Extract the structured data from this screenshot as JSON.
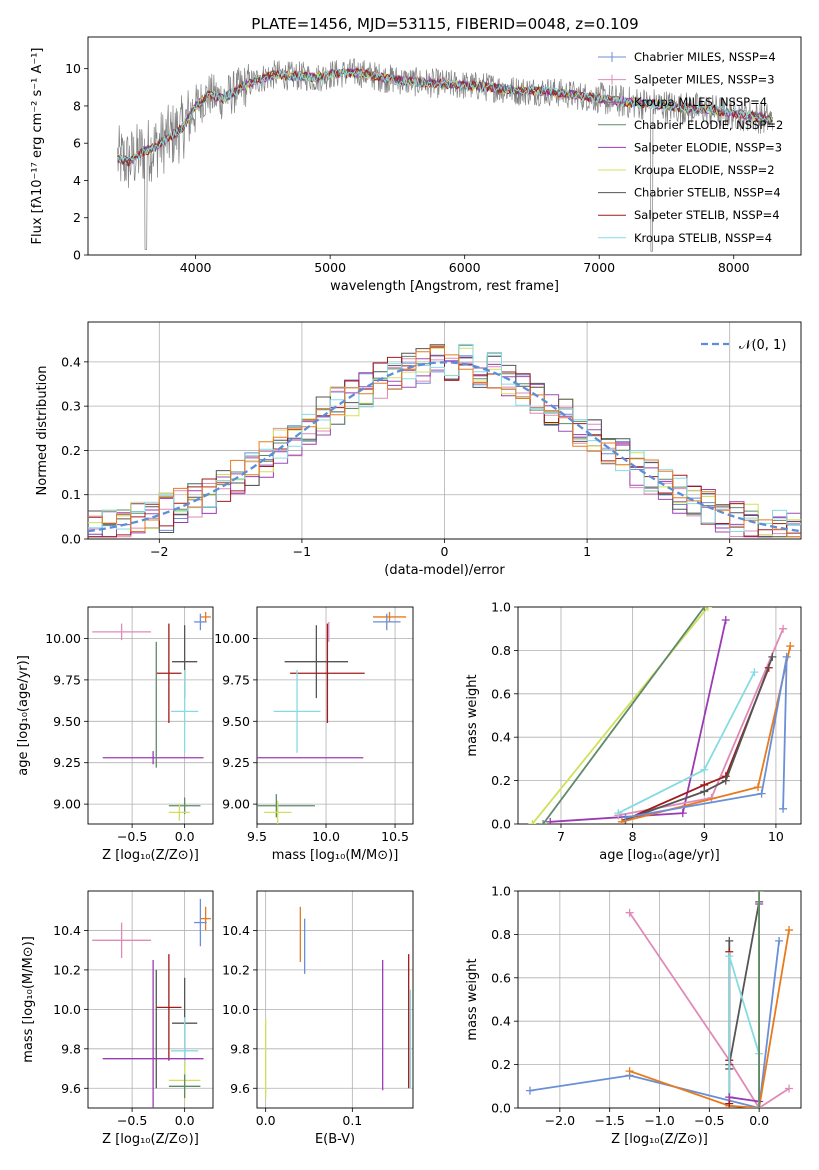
{
  "figure": {
    "title": "PLATE=1456, MJD=53115, FIBERID=0048, z=0.109"
  },
  "colors": {
    "chabrier_miles": "#6a8fd6",
    "salpeter_miles": "#e08ab7",
    "kroupa_miles": "#9a4fb2",
    "chabrier_elodie": "#5f8a6a",
    "salpeter_elodie": "#9b3bb3",
    "kroupa_elodie": "#cfe15a",
    "chabrier_stelib": "#555555",
    "salpeter_stelib": "#a01c1c",
    "kroupa_stelib": "#86dbe3",
    "orange": "#e87a1e",
    "gray_data": "#808080",
    "normal_curve": "#5b8ed8",
    "grid": "#b0b0b0"
  },
  "chart_data": [
    {
      "id": "spectrum",
      "type": "line",
      "xlabel": "wavelength [Angstrom, rest frame]",
      "ylabel": "Flux [fλ10⁻¹⁷ erg cm⁻² s⁻¹ A⁻¹]",
      "xlim": [
        3200,
        8500
      ],
      "ylim": [
        0,
        11.7
      ],
      "xticks": [
        4000,
        5000,
        6000,
        7000,
        8000
      ],
      "yticks": [
        0,
        2,
        4,
        6,
        8,
        10
      ],
      "grid": false,
      "legend_position": "right",
      "series": [
        {
          "name": "Chabrier MILES, N_SSP=4",
          "color": "#6a8fd6"
        },
        {
          "name": "Salpeter MILES, N_SSP=3",
          "color": "#e08ab7"
        },
        {
          "name": "Kroupa MILES, N_SSP=4",
          "color": "#9a4fb2"
        },
        {
          "name": "Chabrier ELODIE, N_SSP=2",
          "color": "#5f8a6a"
        },
        {
          "name": "Salpeter ELODIE, N_SSP=3",
          "color": "#9b3bb3"
        },
        {
          "name": "Kroupa ELODIE, N_SSP=2",
          "color": "#cfe15a"
        },
        {
          "name": "Chabrier STELIB, N_SSP=4",
          "color": "#555555"
        },
        {
          "name": "Salpeter STELIB, N_SSP=4",
          "color": "#a01c1c"
        },
        {
          "name": "Kroupa STELIB, N_SSP=4",
          "color": "#86dbe3"
        }
      ],
      "continuum": {
        "x": [
          3420,
          3500,
          3600,
          3700,
          3800,
          3900,
          4000,
          4100,
          4200,
          4300,
          4400,
          4500,
          4600,
          4700,
          4800,
          4900,
          5000,
          5200,
          5400,
          5600,
          5800,
          6000,
          6200,
          6400,
          6600,
          6800,
          7000,
          7200,
          7400,
          7600,
          7800,
          8000,
          8200,
          8290
        ],
        "y": [
          5.2,
          5.0,
          5.5,
          5.8,
          6.3,
          6.8,
          8.0,
          8.6,
          8.4,
          8.8,
          9.2,
          9.5,
          9.7,
          9.6,
          9.6,
          9.5,
          9.7,
          9.8,
          9.5,
          9.3,
          9.2,
          9.1,
          9.0,
          8.8,
          8.8,
          8.6,
          8.4,
          8.2,
          8.1,
          7.9,
          7.8,
          7.6,
          7.4,
          7.2
        ]
      }
    },
    {
      "id": "residuals",
      "type": "line",
      "xlabel": "(data-model)/error",
      "ylabel": "Normed distribution",
      "xlim": [
        -2.5,
        2.5
      ],
      "ylim": [
        0,
        0.49
      ],
      "xticks": [
        -2,
        -1,
        0,
        1,
        2
      ],
      "yticks": [
        0.0,
        0.1,
        0.2,
        0.3,
        0.4
      ],
      "grid": true,
      "legend_position": "top-right",
      "legend_label": "𝒩(0, 1)",
      "normal": {
        "mu": 0,
        "sigma": 1
      }
    },
    {
      "id": "age_vs_Z",
      "type": "scatter",
      "xlabel": "Z [log₁₀(Z/Z⊙)]",
      "ylabel": "age  [log₁₀(age/yr)]",
      "xlim": [
        -0.92,
        0.27
      ],
      "ylim": [
        8.88,
        10.19
      ],
      "xticks": [
        -0.5,
        0.0
      ],
      "yticks": [
        9.0,
        9.25,
        9.5,
        9.75,
        10.0
      ],
      "grid": true,
      "points": [
        {
          "x": -0.6,
          "y": 10.04,
          "xerr": 0.28,
          "yerr": 0.05,
          "color": "#e08ab7"
        },
        {
          "x": 0.2,
          "y": 10.13,
          "xerr": 0.05,
          "yerr": 0.03,
          "color": "#e87a1e"
        },
        {
          "x": 0.15,
          "y": 10.1,
          "xerr": 0.06,
          "yerr": 0.05,
          "color": "#6a8fd6"
        },
        {
          "x": 0.0,
          "y": 9.86,
          "xerr": 0.12,
          "yerr": 0.22,
          "color": "#555555"
        },
        {
          "x": -0.15,
          "y": 9.79,
          "xerr": 0.12,
          "yerr": 0.3,
          "color": "#a01c1c"
        },
        {
          "x": 0.0,
          "y": 9.56,
          "xerr": 0.13,
          "yerr": 0.25,
          "color": "#86dbe3"
        },
        {
          "x": -0.3,
          "y": 9.28,
          "xerr": 0.48,
          "yerr": 0.04,
          "color": "#9b3bb3"
        },
        {
          "x": 0.0,
          "y": 8.99,
          "xerr": 0.15,
          "yerr": 0.05,
          "color": "#5f8a6a"
        },
        {
          "x": -0.05,
          "y": 8.95,
          "xerr": 0.1,
          "yerr": 0.05,
          "color": "#cfe15a"
        },
        {
          "x": -0.27,
          "y": 9.6,
          "xerr": 0.0,
          "yerr": 0.38,
          "color": "#5f8a6a"
        }
      ]
    },
    {
      "id": "age_vs_mass",
      "type": "scatter",
      "xlabel": "mass [log₁₀(M/M⊙)]",
      "ylabel": "",
      "xlim": [
        9.5,
        10.63
      ],
      "ylim": [
        8.88,
        10.19
      ],
      "xticks": [
        9.5,
        10.0,
        10.5
      ],
      "yticks": [
        9.0,
        9.25,
        9.5,
        9.75,
        10.0
      ],
      "grid": true,
      "points": [
        {
          "x": 10.46,
          "y": 10.13,
          "xerr": 0.12,
          "yerr": 0.03,
          "color": "#e87a1e"
        },
        {
          "x": 10.44,
          "y": 10.1,
          "xerr": 0.1,
          "yerr": 0.05,
          "color": "#6a8fd6"
        },
        {
          "x": 10.02,
          "y": 10.04,
          "xerr": 0.0,
          "yerr": 0.06,
          "color": "#e08ab7"
        },
        {
          "x": 9.93,
          "y": 9.86,
          "xerr": 0.23,
          "yerr": 0.22,
          "color": "#555555"
        },
        {
          "x": 10.01,
          "y": 9.79,
          "xerr": 0.27,
          "yerr": 0.3,
          "color": "#a01c1c"
        },
        {
          "x": 9.79,
          "y": 9.56,
          "xerr": 0.17,
          "yerr": 0.25,
          "color": "#86dbe3"
        },
        {
          "x": 9.75,
          "y": 9.28,
          "xerr": 0.52,
          "yerr": 0.0,
          "color": "#9b3bb3"
        },
        {
          "x": 9.64,
          "y": 8.99,
          "xerr": 0.28,
          "yerr": 0.07,
          "color": "#5f8a6a"
        },
        {
          "x": 9.65,
          "y": 8.95,
          "xerr": 0.1,
          "yerr": 0.07,
          "color": "#cfe15a"
        }
      ]
    },
    {
      "id": "massweight_vs_age",
      "type": "line",
      "xlabel": "age  [log₁₀(age/yr)]",
      "ylabel": "mass weight",
      "xlim": [
        6.4,
        10.35
      ],
      "ylim": [
        0,
        1.0
      ],
      "xticks": [
        7,
        8,
        9,
        10
      ],
      "yticks": [
        0.0,
        0.2,
        0.4,
        0.6,
        0.8,
        1.0
      ],
      "grid": true,
      "series": [
        {
          "color": "#cfe15a",
          "x": [
            6.6,
            9.05
          ],
          "y": [
            0.0,
            1.0
          ]
        },
        {
          "color": "#5f8a6a",
          "x": [
            6.75,
            9.0
          ],
          "y": [
            0.0,
            1.0
          ]
        },
        {
          "color": "#9b3bb3",
          "x": [
            6.85,
            8.7,
            9.3
          ],
          "y": [
            0.01,
            0.05,
            0.94
          ]
        },
        {
          "color": "#e08ab7",
          "x": [
            7.8,
            9.1,
            10.1
          ],
          "y": [
            0.04,
            0.12,
            0.9
          ]
        },
        {
          "color": "#86dbe3",
          "x": [
            7.8,
            9.0,
            9.7
          ],
          "y": [
            0.05,
            0.25,
            0.7
          ]
        },
        {
          "color": "#a01c1c",
          "x": [
            7.9,
            9.0,
            9.3,
            9.9
          ],
          "y": [
            0.02,
            0.18,
            0.22,
            0.72
          ]
        },
        {
          "color": "#555555",
          "x": [
            7.9,
            9.0,
            9.3,
            9.95
          ],
          "y": [
            0.02,
            0.15,
            0.2,
            0.77
          ]
        },
        {
          "color": "#e87a1e",
          "x": [
            7.85,
            9.75,
            10.2
          ],
          "y": [
            0.01,
            0.17,
            0.82
          ]
        },
        {
          "color": "#6a8fd6",
          "x": [
            7.9,
            9.8,
            10.15,
            10.1
          ],
          "y": [
            0.03,
            0.14,
            0.77,
            0.07
          ]
        }
      ]
    },
    {
      "id": "mass_vs_Z",
      "type": "scatter",
      "xlabel": "Z [log₁₀(Z/Z⊙)]",
      "ylabel": "mass [log₁₀(M/M⊙)]",
      "xlim": [
        -0.92,
        0.27
      ],
      "ylim": [
        9.5,
        10.6
      ],
      "xticks": [
        -0.5,
        0.0
      ],
      "yticks": [
        9.6,
        9.8,
        10.0,
        10.2,
        10.4
      ],
      "grid": true,
      "points": [
        {
          "x": -0.6,
          "y": 10.35,
          "xerr": 0.28,
          "yerr": 0.09,
          "color": "#e08ab7"
        },
        {
          "x": 0.2,
          "y": 10.46,
          "xerr": 0.05,
          "yerr": 0.06,
          "color": "#e87a1e"
        },
        {
          "x": 0.15,
          "y": 10.44,
          "xerr": 0.06,
          "yerr": 0.12,
          "color": "#6a8fd6"
        },
        {
          "x": -0.15,
          "y": 10.01,
          "xerr": 0.12,
          "yerr": 0.27,
          "color": "#a01c1c"
        },
        {
          "x": 0.0,
          "y": 9.93,
          "xerr": 0.12,
          "yerr": 0.23,
          "color": "#555555"
        },
        {
          "x": 0.0,
          "y": 9.79,
          "xerr": 0.13,
          "yerr": 0.17,
          "color": "#86dbe3"
        },
        {
          "x": -0.3,
          "y": 9.75,
          "xerr": 0.48,
          "yerr": 0.5,
          "color": "#9b3bb3"
        },
        {
          "x": 0.0,
          "y": 9.64,
          "xerr": 0.15,
          "yerr": 0.1,
          "color": "#cfe15a"
        },
        {
          "x": 0.0,
          "y": 9.61,
          "xerr": 0.15,
          "yerr": 0.06,
          "color": "#5f8a6a"
        },
        {
          "x": -0.27,
          "y": 9.9,
          "xerr": 0.0,
          "yerr": 0.3,
          "color": "#555555"
        }
      ]
    },
    {
      "id": "mass_vs_ebv",
      "type": "scatter",
      "xlabel": "E(B-V)",
      "ylabel": "",
      "xlim": [
        -0.01,
        0.17
      ],
      "ylim": [
        9.5,
        10.6
      ],
      "xticks": [
        0.0,
        0.1
      ],
      "yticks": [
        9.6,
        9.8,
        10.0,
        10.2,
        10.4
      ],
      "grid": true,
      "points": [
        {
          "x": 0.0,
          "y": 9.75,
          "xerr": 0.0,
          "yerr": 0.2,
          "color": "#cfe15a"
        },
        {
          "x": 0.04,
          "y": 10.38,
          "xerr": 0.0,
          "yerr": 0.14,
          "color": "#e87a1e"
        },
        {
          "x": 0.045,
          "y": 10.32,
          "xerr": 0.0,
          "yerr": 0.14,
          "color": "#6a8fd6"
        },
        {
          "x": 0.135,
          "y": 9.92,
          "xerr": 0.0,
          "yerr": 0.33,
          "color": "#9b3bb3"
        },
        {
          "x": 0.165,
          "y": 9.94,
          "xerr": 0.0,
          "yerr": 0.34,
          "color": "#a01c1c"
        },
        {
          "x": 0.167,
          "y": 9.85,
          "xerr": 0.0,
          "yerr": 0.25,
          "color": "#86dbe3"
        }
      ]
    },
    {
      "id": "massweight_vs_Z",
      "type": "line",
      "xlabel": "Z [log₁₀(Z/Z⊙)]",
      "ylabel": "mass weight",
      "xlim": [
        -2.42,
        0.42
      ],
      "ylim": [
        0,
        1.0
      ],
      "xticks": [
        -2.0,
        -1.5,
        -1.0,
        -0.5,
        0.0
      ],
      "yticks": [
        0.0,
        0.2,
        0.4,
        0.6,
        0.8,
        1.0
      ],
      "grid": true,
      "series": [
        {
          "color": "#6a8fd6",
          "x": [
            -2.3,
            -1.3,
            0.0,
            0.2
          ],
          "y": [
            0.08,
            0.15,
            0.0,
            0.77
          ]
        },
        {
          "color": "#e87a1e",
          "x": [
            -1.3,
            -0.3,
            0.0,
            0.3
          ],
          "y": [
            0.17,
            0.01,
            0.0,
            0.82
          ]
        },
        {
          "color": "#e08ab7",
          "x": [
            -1.3,
            -0.3,
            0.0,
            0.3
          ],
          "y": [
            0.9,
            0.22,
            0.0,
            0.09
          ]
        },
        {
          "color": "#555555",
          "x": [
            -0.3,
            -0.3,
            -0.3,
            0.0
          ],
          "y": [
            0.18,
            0.77,
            0.2,
            0.95
          ]
        },
        {
          "color": "#a01c1c",
          "x": [
            -0.3,
            -0.3,
            -0.3
          ],
          "y": [
            0.22,
            0.72,
            0.02
          ]
        },
        {
          "color": "#86dbe3",
          "x": [
            -0.3,
            -0.3,
            0.0
          ],
          "y": [
            0.05,
            0.7,
            0.25
          ]
        },
        {
          "color": "#9b3bb3",
          "x": [
            -0.3,
            0.0,
            0.0
          ],
          "y": [
            0.05,
            0.03,
            0.94
          ]
        },
        {
          "color": "#cfe15a",
          "x": [
            0.0,
            0.0
          ],
          "y": [
            0.0,
            1.0
          ]
        },
        {
          "color": "#5f8a6a",
          "x": [
            0.0,
            0.0
          ],
          "y": [
            0.0,
            1.0
          ]
        }
      ]
    }
  ]
}
